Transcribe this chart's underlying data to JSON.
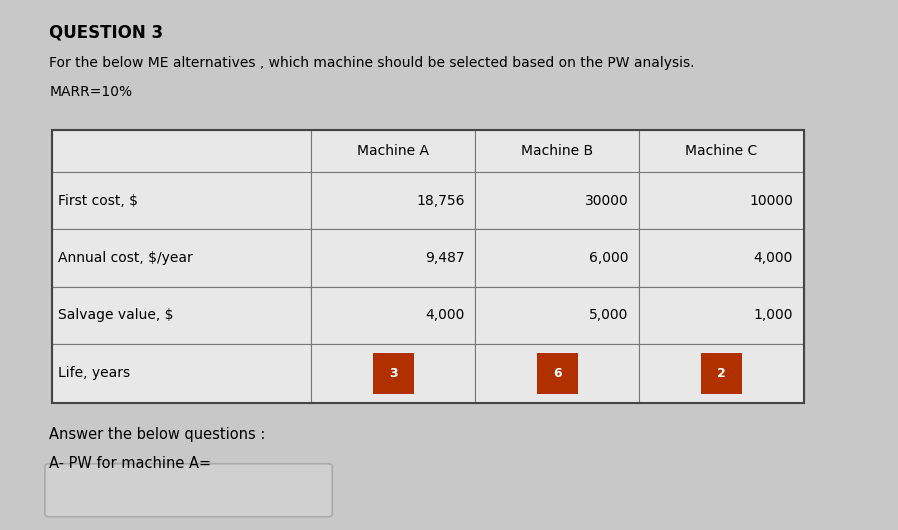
{
  "title": "QUESTION 3",
  "subtitle_line1": "For the below ME alternatives , which machine should be selected based on the PW analysis.",
  "subtitle_line2": "MARR=10%",
  "col_headers": [
    "Machine A",
    "Machine B",
    "Machine C"
  ],
  "row_headers": [
    "First cost, $",
    "Annual cost, $/year",
    "Salvage value, $",
    "Life, years"
  ],
  "table_data": [
    [
      "18,756",
      "30000",
      "10000"
    ],
    [
      "9,487",
      "6,000",
      "4,000"
    ],
    [
      "4,000",
      "5,000",
      "1,000"
    ],
    [
      "3",
      "6",
      "2"
    ]
  ],
  "answer_label1": "Answer the below questions :",
  "answer_label2": "A- PW for machine A=",
  "bg_color": "#c8c8c8",
  "table_cell_bg": "#e8e8e8",
  "text_color": "#000000",
  "life_badge_color": "#b03000",
  "life_text_color": "#ffffff",
  "ans_box_color": "#d0d0d0",
  "ans_box_edge": "#aaaaaa"
}
